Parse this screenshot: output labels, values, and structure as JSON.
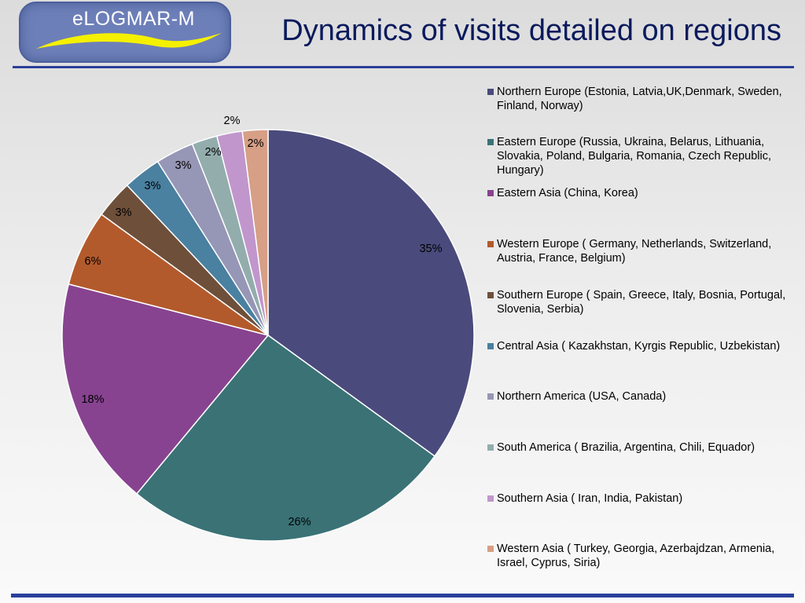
{
  "header": {
    "logo_text": "eLOGMAR-M",
    "title": "Dynamics of visits detailed on regions"
  },
  "colors": {
    "brand_blue": "#2a3f9a",
    "title": "#0a1a5c",
    "logo_fill": "#6d7fb8",
    "logo_swoosh": "#f5f000"
  },
  "chart_data": {
    "type": "pie",
    "slices": [
      {
        "label": "Northern Europe (Estonia, Latvia,UK,Denmark, Sweden, Finland, Norway)",
        "value": 35,
        "display": "35%",
        "color": "#4a4a7c"
      },
      {
        "label": "Eastern Europe (Russia, Ukraina, Belarus, Lithuania, Slovakia, Poland, Bulgaria, Romania, Czech Republic, Hungary)",
        "value": 26,
        "display": "26%",
        "color": "#3a7276"
      },
      {
        "label": "Eastern Asia (China, Korea)",
        "value": 18,
        "display": "18%",
        "color": "#874390"
      },
      {
        "label": "Western Europe ( Germany, Netherlands, Switzerland, Austria, France, Belgium)",
        "value": 6,
        "display": "6%",
        "color": "#b35a2c"
      },
      {
        "label": "Southern Europe ( Spain, Greece, Italy, Bosnia, Portugal, Slovenia, Serbia)",
        "value": 3,
        "display": "3%",
        "color": "#6e4f3a"
      },
      {
        "label": "Central Asia ( Kazakhstan, Kyrgis Republic, Uzbekistan)",
        "value": 3,
        "display": "3%",
        "color": "#4a80a0"
      },
      {
        "label": "Northern America (USA, Canada)",
        "value": 3,
        "display": "3%",
        "color": "#9696b6"
      },
      {
        "label": "South America ( Brazilia, Argentina, Chili, Equador)",
        "value": 2,
        "display": "2%",
        "color": "#93adad"
      },
      {
        "label": "Southern Asia ( Iran, India, Pakistan)",
        "value": 2,
        "display": "2%",
        "color": "#c196cc"
      },
      {
        "label": "Western Asia ( Turkey, Georgia, Azerbajdzan, Armenia, Israel, Cyprus, Siria)",
        "value": 2,
        "display": "2%",
        "color": "#d69f86"
      }
    ],
    "legend_position": "right"
  }
}
